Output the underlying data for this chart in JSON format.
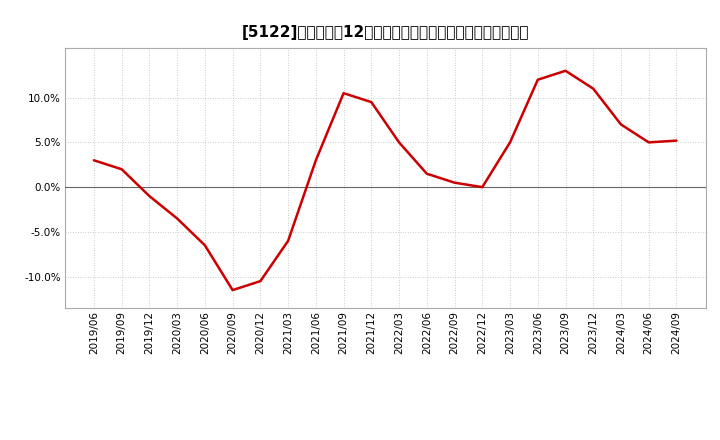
{
  "title": "[5122]　売上高の12か月移動合計の対前年同期増減率の推移",
  "x_labels": [
    "2019/06",
    "2019/09",
    "2019/12",
    "2020/03",
    "2020/06",
    "2020/09",
    "2020/12",
    "2021/03",
    "2021/06",
    "2021/09",
    "2021/12",
    "2022/03",
    "2022/06",
    "2022/09",
    "2022/12",
    "2023/03",
    "2023/06",
    "2023/09",
    "2023/12",
    "2024/03",
    "2024/06",
    "2024/09"
  ],
  "y_values": [
    3.0,
    2.0,
    -1.0,
    -3.5,
    -6.5,
    -11.5,
    -10.5,
    -6.0,
    3.0,
    10.5,
    9.5,
    5.0,
    1.5,
    0.5,
    0.0,
    5.0,
    12.0,
    13.0,
    11.0,
    7.0,
    5.0,
    5.2
  ],
  "line_color": "#cc0000",
  "background_color": "#ffffff",
  "plot_bg_color": "#ffffff",
  "grid_color": "#bbbbbb",
  "zero_line_color": "#666666",
  "border_color": "#aaaaaa",
  "ylim": [
    -13.5,
    15.5
  ],
  "yticks": [
    -10.0,
    -5.0,
    0.0,
    5.0,
    10.0
  ],
  "title_fontsize": 11,
  "tick_fontsize": 7.5,
  "line_width": 1.8
}
